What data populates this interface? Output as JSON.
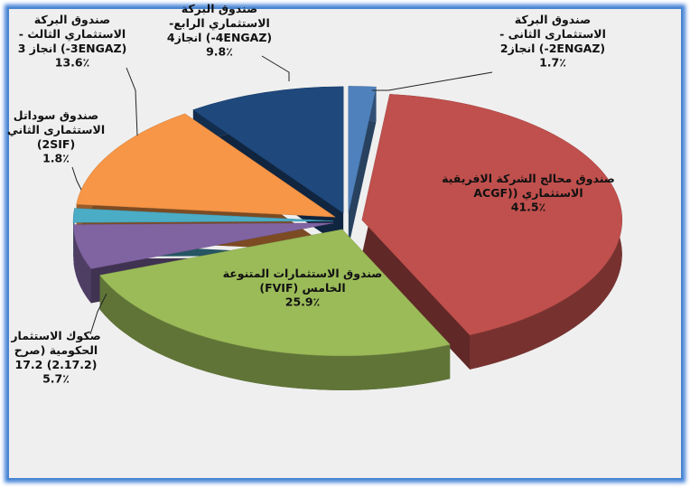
{
  "chart_data": {
    "type": "pie3d",
    "categories": [
      "صندوق البركة\nالاستثمارى الثانى -\n(2ENGAZ-) انجاز2",
      "صندوق محالج الشركة الافريقية\nالاستثماري ((ACGF",
      "صندوق الاستثمارات المتنوعة\nالخامس (FVIF)",
      "صكوك الاستثمار\nالحكومية (صرح\n(2.17.2) 17.2",
      "صندوق سوداتل\nالاستثمارى الثاني\n(2SIF)",
      "صندوق البركة\nالاستثماري الثالث -\n(3ENGAZ-) انجاز 3",
      "صندوق البركة\nالاستثماري الرابع-\n(4ENGAZ-) انجاز4"
    ],
    "values": [
      1.7,
      41.5,
      25.9,
      5.7,
      1.8,
      13.6,
      9.8
    ],
    "value_labels": [
      "1.7٪",
      "41.5٪",
      "25.9٪",
      "5.7٪",
      "1.8٪",
      "13.6٪",
      "9.8٪"
    ],
    "colors": [
      "#4f81bd",
      "#c0504d",
      "#9bbb59",
      "#8064a2",
      "#4bacc6",
      "#f79646",
      "#1f497d"
    ]
  }
}
